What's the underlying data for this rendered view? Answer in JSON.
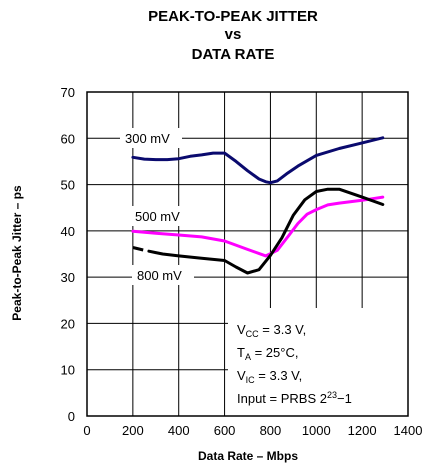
{
  "chart_data": {
    "type": "line",
    "title_lines": [
      "PEAK-TO-PEAK JITTER",
      "vs",
      "DATA RATE"
    ],
    "xlabel": "Data Rate – Mbps",
    "ylabel": "Peak-to-Peak Jitter – ps",
    "xlim": [
      0,
      1400
    ],
    "ylim": [
      0,
      70
    ],
    "x_ticks": [
      0,
      200,
      400,
      600,
      800,
      1000,
      1200,
      1400
    ],
    "y_ticks": [
      0,
      10,
      20,
      30,
      40,
      50,
      60,
      70
    ],
    "grid": true,
    "series": [
      {
        "name": "300 mV",
        "color": "#0a0a6e",
        "points": [
          [
            200,
            55.9
          ],
          [
            250,
            55.5
          ],
          [
            300,
            55.4
          ],
          [
            350,
            55.4
          ],
          [
            400,
            55.6
          ],
          [
            450,
            56.1
          ],
          [
            500,
            56.4
          ],
          [
            550,
            56.8
          ],
          [
            600,
            56.8
          ],
          [
            650,
            55.0
          ],
          [
            700,
            53.0
          ],
          [
            750,
            51.2
          ],
          [
            780,
            50.6
          ],
          [
            800,
            50.4
          ],
          [
            830,
            50.8
          ],
          [
            870,
            52.3
          ],
          [
            920,
            54.0
          ],
          [
            1000,
            56.3
          ],
          [
            1100,
            57.8
          ],
          [
            1200,
            59.0
          ],
          [
            1290,
            60.1
          ]
        ]
      },
      {
        "name": "500 mV",
        "color": "#ff00ff",
        "points": [
          [
            200,
            39.9
          ],
          [
            300,
            39.5
          ],
          [
            400,
            39.1
          ],
          [
            500,
            38.7
          ],
          [
            600,
            37.8
          ],
          [
            700,
            36.0
          ],
          [
            780,
            34.6
          ],
          [
            830,
            35.8
          ],
          [
            880,
            39.0
          ],
          [
            920,
            41.6
          ],
          [
            960,
            43.6
          ],
          [
            1000,
            44.6
          ],
          [
            1050,
            45.6
          ],
          [
            1100,
            46.0
          ],
          [
            1200,
            46.6
          ],
          [
            1290,
            47.3
          ]
        ]
      },
      {
        "name": "800 mV",
        "color": "#000000",
        "points": [
          [
            200,
            36.4
          ],
          [
            250,
            35.8
          ],
          [
            300,
            35.3
          ],
          [
            330,
            35.0
          ],
          [
            400,
            34.6
          ],
          [
            500,
            34.1
          ],
          [
            600,
            33.6
          ],
          [
            650,
            32.2
          ],
          [
            700,
            30.9
          ],
          [
            750,
            31.6
          ],
          [
            800,
            34.7
          ],
          [
            850,
            38.5
          ],
          [
            900,
            43.4
          ],
          [
            950,
            46.7
          ],
          [
            1000,
            48.5
          ],
          [
            1050,
            49.0
          ],
          [
            1100,
            49.0
          ],
          [
            1200,
            47.3
          ],
          [
            1290,
            45.7
          ]
        ],
        "dash_gap_x": [
          245,
          270
        ]
      }
    ],
    "annotation": [
      {
        "main": "V",
        "sub": "CC",
        "rest": " = 3.3 V,"
      },
      {
        "main": "T",
        "sub": "A",
        "rest": " = 25°C,"
      },
      {
        "main": "V",
        "sub": "IC",
        "rest": " = 3.3 V,"
      },
      {
        "main": "Input = PRBS 2",
        "sup": "23",
        "rest": "−1"
      }
    ]
  }
}
